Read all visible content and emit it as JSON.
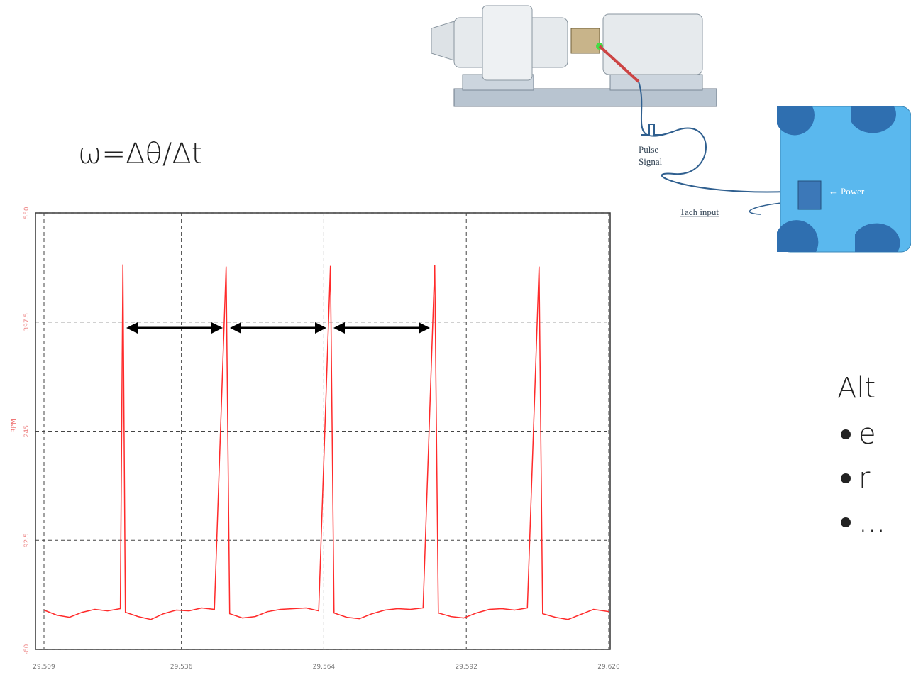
{
  "chart_data": {
    "type": "line",
    "y_label": "RPM",
    "color": "#ff2a2a",
    "x": [
      29.509,
      29.5115,
      29.514,
      29.5165,
      29.519,
      29.5215,
      29.524,
      29.5245,
      29.525,
      29.5275,
      29.53,
      29.5325,
      29.535,
      29.5375,
      29.54,
      29.5425,
      29.5448,
      29.5455,
      29.548,
      29.5505,
      29.553,
      29.5555,
      29.558,
      29.5605,
      29.563,
      29.5653,
      29.566,
      29.5685,
      29.571,
      29.5735,
      29.576,
      29.5785,
      29.581,
      29.5835,
      29.5858,
      29.5865,
      29.589,
      29.5915,
      29.594,
      29.5965,
      29.599,
      29.6015,
      29.604,
      29.6063,
      29.607,
      29.6095,
      29.612,
      29.6145,
      29.617,
      29.62
    ],
    "values": [
      -5,
      -12,
      -15,
      -8,
      -4,
      -6,
      -3,
      478,
      -8,
      -14,
      -18,
      -10,
      -5,
      -6,
      -2,
      -4,
      475,
      -10,
      -16,
      -14,
      -7,
      -4,
      -3,
      -2,
      -6,
      476,
      -9,
      -15,
      -17,
      -10,
      -5,
      -3,
      -4,
      -2,
      477,
      -9,
      -14,
      -16,
      -9,
      -4,
      -3,
      -5,
      -2,
      475,
      -10,
      -15,
      -18,
      -11,
      -4,
      -7
    ],
    "xlim": [
      29.509,
      29.62
    ],
    "xticks": [
      29.509,
      29.536,
      29.564,
      29.592,
      {
        "value": 29.62,
        "label": "29.620"
      }
    ],
    "ylim": [
      -60,
      550
    ],
    "yticks": [
      -60,
      92.5,
      245,
      397.5,
      550
    ],
    "grid": true
  },
  "formula": "ω=Δθ/Δt",
  "diagram": {
    "pulse_signal": [
      "Pulse",
      "Signal"
    ],
    "tach_input": "Tach input",
    "power": "Power"
  },
  "notes": {
    "heading": "Alt",
    "bullets": [
      "e",
      "r",
      "..."
    ]
  }
}
